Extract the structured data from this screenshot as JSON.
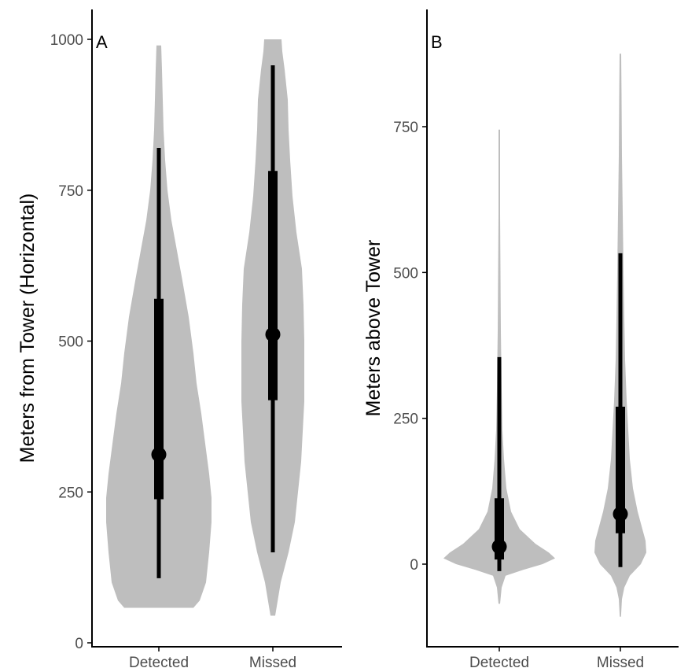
{
  "colors": {
    "violin": "#bebebe",
    "interval": "#000000",
    "axis": "#000000",
    "tick_text": "#4d4d4d"
  },
  "chart_data": [
    {
      "type": "violin",
      "panel_label": "A",
      "ylabel": "Meters from Tower (Horizontal)",
      "ylim": [
        0,
        1000
      ],
      "yticks": [
        0,
        250,
        500,
        750,
        1000
      ],
      "yticklabels": [
        "0",
        "250",
        "500",
        "750",
        "1000"
      ],
      "categories": [
        "Detected",
        "Missed"
      ],
      "groups": [
        {
          "category": "Detected",
          "median": 312,
          "inner_interval": [
            238,
            570
          ],
          "outer_interval": [
            107,
            820
          ],
          "density": [
            [
              58,
              44
            ],
            [
              70,
              52
            ],
            [
              100,
              60
            ],
            [
              150,
              64
            ],
            [
              200,
              67
            ],
            [
              240,
              67
            ],
            [
              280,
              64
            ],
            [
              320,
              60
            ],
            [
              380,
              54
            ],
            [
              430,
              48
            ],
            [
              480,
              44
            ],
            [
              540,
              38
            ],
            [
              600,
              30
            ],
            [
              650,
              23
            ],
            [
              700,
              16
            ],
            [
              750,
              11
            ],
            [
              800,
              8
            ],
            [
              850,
              6
            ],
            [
              900,
              5
            ],
            [
              950,
              4
            ],
            [
              990,
              3
            ]
          ]
        },
        {
          "category": "Missed",
          "median": 511,
          "inner_interval": [
            402,
            782
          ],
          "outer_interval": [
            150,
            957
          ],
          "density": [
            [
              45,
              3
            ],
            [
              100,
              10
            ],
            [
              150,
              20
            ],
            [
              200,
              28
            ],
            [
              250,
              32
            ],
            [
              300,
              36
            ],
            [
              350,
              38
            ],
            [
              400,
              40
            ],
            [
              450,
              40
            ],
            [
              500,
              40
            ],
            [
              560,
              39
            ],
            [
              620,
              37
            ],
            [
              680,
              30
            ],
            [
              740,
              25
            ],
            [
              800,
              22
            ],
            [
              850,
              20
            ],
            [
              900,
              19
            ],
            [
              950,
              15
            ],
            [
              980,
              12
            ],
            [
              1000,
              11
            ]
          ]
        }
      ]
    },
    {
      "type": "violin",
      "panel_label": "B",
      "ylabel": "Meters above Tower",
      "ylim": [
        -100,
        900
      ],
      "yticks": [
        0,
        250,
        500,
        750
      ],
      "yticklabels": [
        "0",
        "250",
        "500",
        "750"
      ],
      "categories": [
        "Detected",
        "Missed"
      ],
      "groups": [
        {
          "category": "Detected",
          "median": 30,
          "inner_interval": [
            8,
            113
          ],
          "outer_interval": [
            -12,
            355
          ],
          "density": [
            [
              -68,
              1
            ],
            [
              -40,
              3
            ],
            [
              -20,
              8
            ],
            [
              -10,
              30
            ],
            [
              0,
              55
            ],
            [
              10,
              71
            ],
            [
              20,
              63
            ],
            [
              35,
              46
            ],
            [
              60,
              26
            ],
            [
              90,
              15
            ],
            [
              130,
              9
            ],
            [
              180,
              6
            ],
            [
              230,
              4
            ],
            [
              300,
              3
            ],
            [
              400,
              2
            ],
            [
              500,
              1.5
            ],
            [
              600,
              1
            ],
            [
              700,
              1
            ],
            [
              745,
              1
            ]
          ]
        },
        {
          "category": "Missed",
          "median": 86,
          "inner_interval": [
            53,
            270
          ],
          "outer_interval": [
            -5,
            533
          ],
          "density": [
            [
              -90,
              0.8
            ],
            [
              -60,
              2
            ],
            [
              -40,
              5
            ],
            [
              -20,
              12
            ],
            [
              0,
              26
            ],
            [
              20,
              33
            ],
            [
              40,
              32
            ],
            [
              60,
              28
            ],
            [
              90,
              22
            ],
            [
              130,
              16
            ],
            [
              180,
              12
            ],
            [
              230,
              10
            ],
            [
              280,
              8
            ],
            [
              350,
              6
            ],
            [
              420,
              5
            ],
            [
              500,
              4
            ],
            [
              600,
              3
            ],
            [
              700,
              2
            ],
            [
              800,
              1.5
            ],
            [
              875,
              1
            ]
          ]
        }
      ]
    }
  ]
}
